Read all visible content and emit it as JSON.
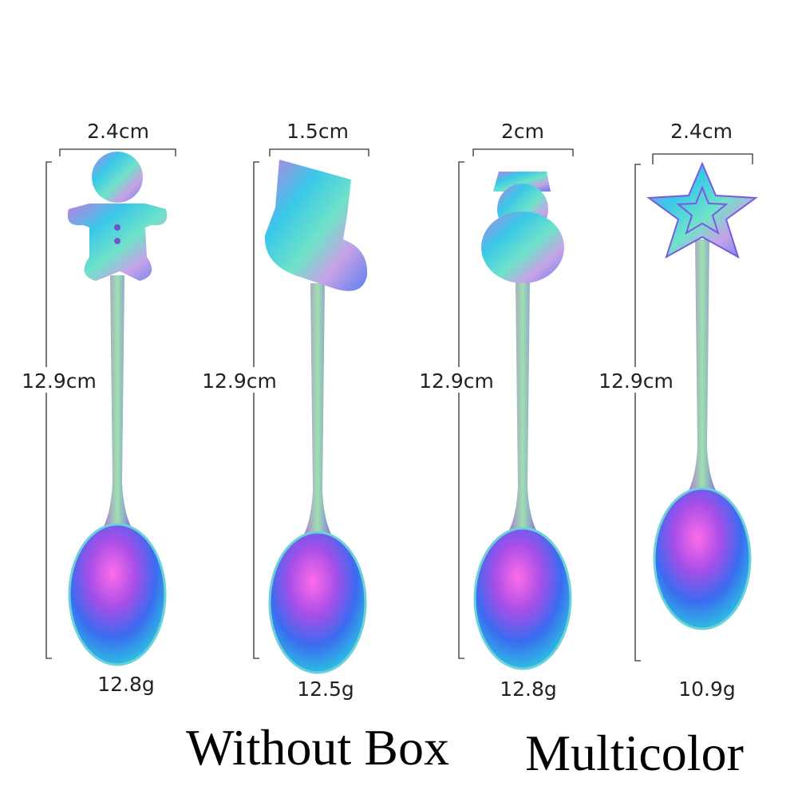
{
  "spoons": [
    {
      "width": "2.4cm",
      "length": "12.9cm",
      "weight": "12.8g"
    },
    {
      "width": "1.5cm",
      "length": "12.9cm",
      "weight": "12.5g"
    },
    {
      "width": "2cm",
      "length": "12.9cm",
      "weight": "12.8g"
    },
    {
      "width": "2.4cm",
      "length": "12.9cm",
      "weight": "10.9g"
    }
  ],
  "footer": {
    "box": "Without Box",
    "color": "Multicolor"
  }
}
